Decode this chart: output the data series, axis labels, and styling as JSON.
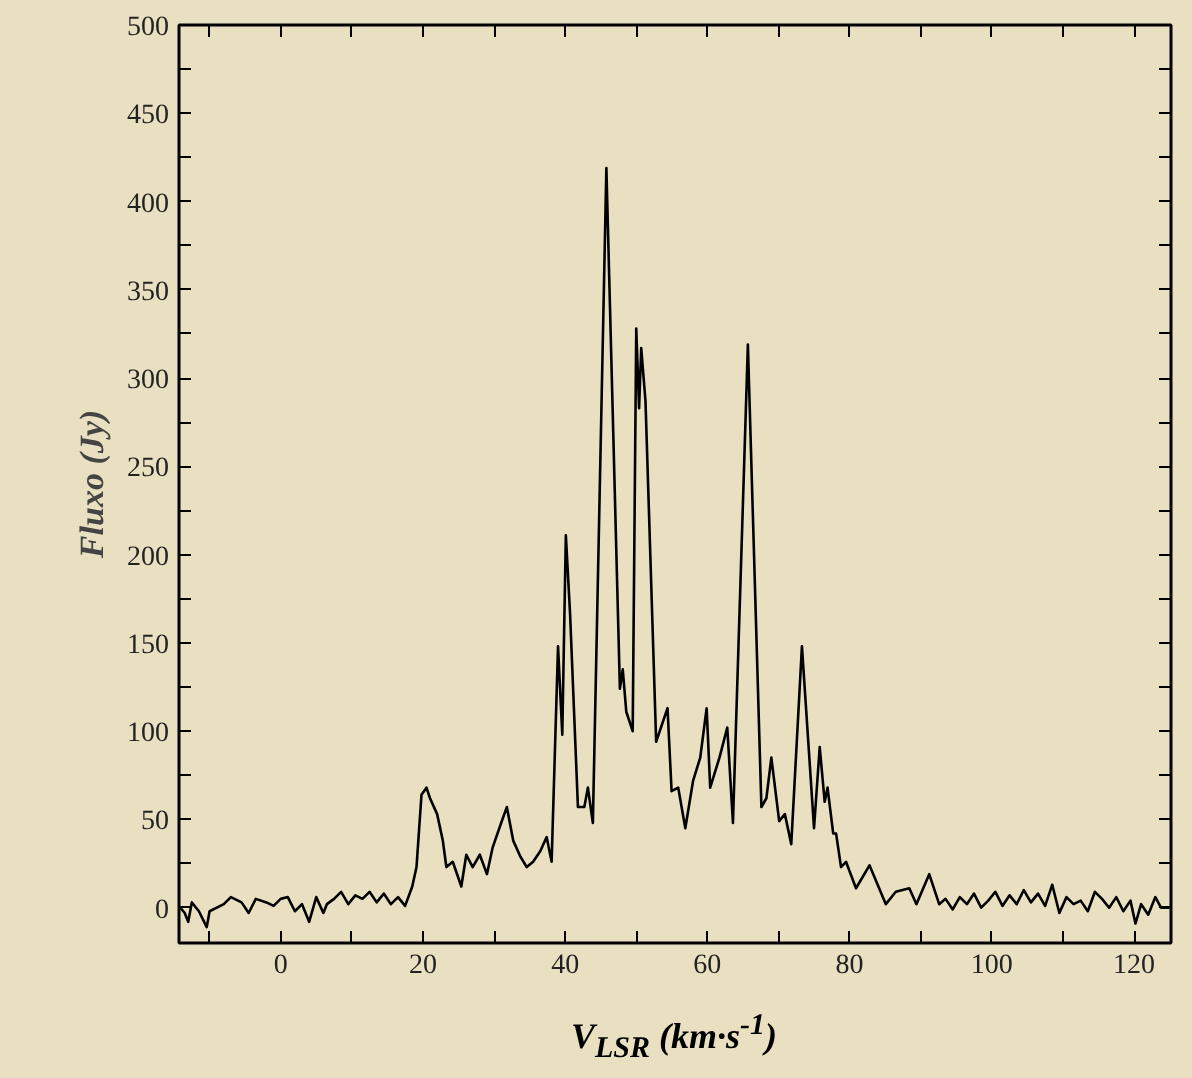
{
  "chart_data": {
    "type": "line",
    "xlabel": "V$_{LSR}$ (km·s$^{-1}$)",
    "ylabel": "Fluxo (Jy)",
    "xlim": [
      -14.3,
      125.2
    ],
    "ylim": [
      -20,
      500
    ],
    "xticks": [
      {
        "value": -10,
        "label": null
      },
      0,
      {
        "value": 10,
        "label": null
      },
      20,
      {
        "value": 30,
        "label": null
      },
      40,
      {
        "value": 50,
        "label": null
      },
      60,
      {
        "value": 70,
        "label": null
      },
      80,
      {
        "value": 90,
        "label": null
      },
      100,
      {
        "value": 110,
        "label": null
      },
      120
    ],
    "yticks": [
      0,
      {
        "value": 25,
        "label": null
      },
      50,
      {
        "value": 75,
        "label": null
      },
      100,
      {
        "value": 125,
        "label": null
      },
      150,
      {
        "value": 175,
        "label": null
      },
      200,
      {
        "value": 225,
        "label": null
      },
      250,
      {
        "value": 275,
        "label": null
      },
      300,
      {
        "value": 325,
        "label": null
      },
      350,
      {
        "value": 375,
        "label": null
      },
      400,
      {
        "value": 425,
        "label": null
      },
      450,
      {
        "value": 475,
        "label": null
      },
      500
    ],
    "grid": false,
    "marker": "none",
    "line_style": "solid",
    "series": [
      {
        "color": "#000000",
        "x": [
          -14.1,
          -13.5,
          -13,
          -12.5,
          -11.5,
          -10.4,
          -10,
          -8,
          -7,
          -5.5,
          -4.5,
          -3.5,
          -2,
          -1,
          0,
          1,
          2,
          3,
          4,
          5,
          6,
          6.5,
          7.5,
          8.5,
          9.5,
          10.5,
          11.5,
          12.5,
          13.5,
          14.5,
          15.5,
          16.5,
          17.5,
          18.5,
          19.1,
          19.8,
          20.5,
          21,
          22,
          22.8,
          23.3,
          24.2,
          25.4,
          26.1,
          27,
          28,
          29,
          29.8,
          31,
          31.8,
          32.7,
          33.7,
          34.6,
          35.5,
          36.5,
          37.4,
          38.1,
          39,
          39.6,
          40.1,
          40.7,
          41.8,
          42.7,
          43.2,
          43.9,
          45.8,
          47.7,
          48.1,
          48.6,
          49.5,
          50,
          50.4,
          50.7,
          51.3,
          52.8,
          54.4,
          54.97,
          55.9,
          56.9,
          58,
          59,
          59.9,
          60.4,
          61.7,
          62.8,
          63.6,
          65.7,
          67.6,
          68.3,
          69,
          70.1,
          70.9,
          71.8,
          73.3,
          75,
          75.8,
          76.5,
          76.9,
          77.7,
          78.1,
          78.8,
          79.5,
          80.9,
          82.8,
          85.1,
          86.5,
          88.4,
          89.4,
          91.2,
          92.6,
          93.5,
          94.5,
          95.5,
          96.5,
          97.5,
          98.5,
          99.5,
          100.5,
          101.5,
          102.5,
          103.5,
          104.5,
          105.5,
          106.5,
          107.5,
          108.5,
          109.5,
          110.5,
          111.5,
          112.5,
          113.5,
          114.5,
          115.5,
          116.5,
          117.5,
          118.5,
          119.5,
          120.2,
          121,
          122,
          123,
          123.8,
          125
        ],
        "values": [
          0,
          -3,
          -8,
          3,
          -2,
          -11,
          -2,
          2,
          6,
          3,
          -3,
          5,
          3,
          1,
          5,
          6,
          -2,
          2,
          -8,
          6,
          -3,
          2,
          5,
          9,
          2,
          7,
          5,
          9,
          3,
          8,
          2,
          6,
          1,
          12,
          23,
          64,
          68,
          62,
          53,
          38,
          23,
          26,
          12,
          30,
          23,
          30,
          19,
          34,
          48,
          57,
          38,
          29,
          23,
          26,
          32,
          40,
          26,
          148,
          98,
          211,
          166,
          57,
          57,
          68,
          48,
          419,
          124,
          135,
          111,
          100,
          328,
          283,
          317,
          287,
          94,
          113,
          66,
          68,
          45,
          72,
          85,
          113,
          68,
          85,
          102,
          48,
          319,
          57,
          62,
          85,
          49,
          53,
          36,
          148,
          45,
          91,
          60,
          68,
          42,
          42,
          23,
          26,
          11,
          24,
          2,
          9,
          11,
          2,
          19,
          2,
          5,
          -1,
          6,
          2,
          8,
          0,
          4,
          9,
          1,
          7,
          2,
          10,
          3,
          8,
          1,
          13,
          -3,
          6,
          2,
          4,
          -2,
          9,
          5,
          0,
          6,
          -2,
          4,
          -9,
          2,
          -4,
          6,
          0,
          0
        ]
      }
    ]
  }
}
